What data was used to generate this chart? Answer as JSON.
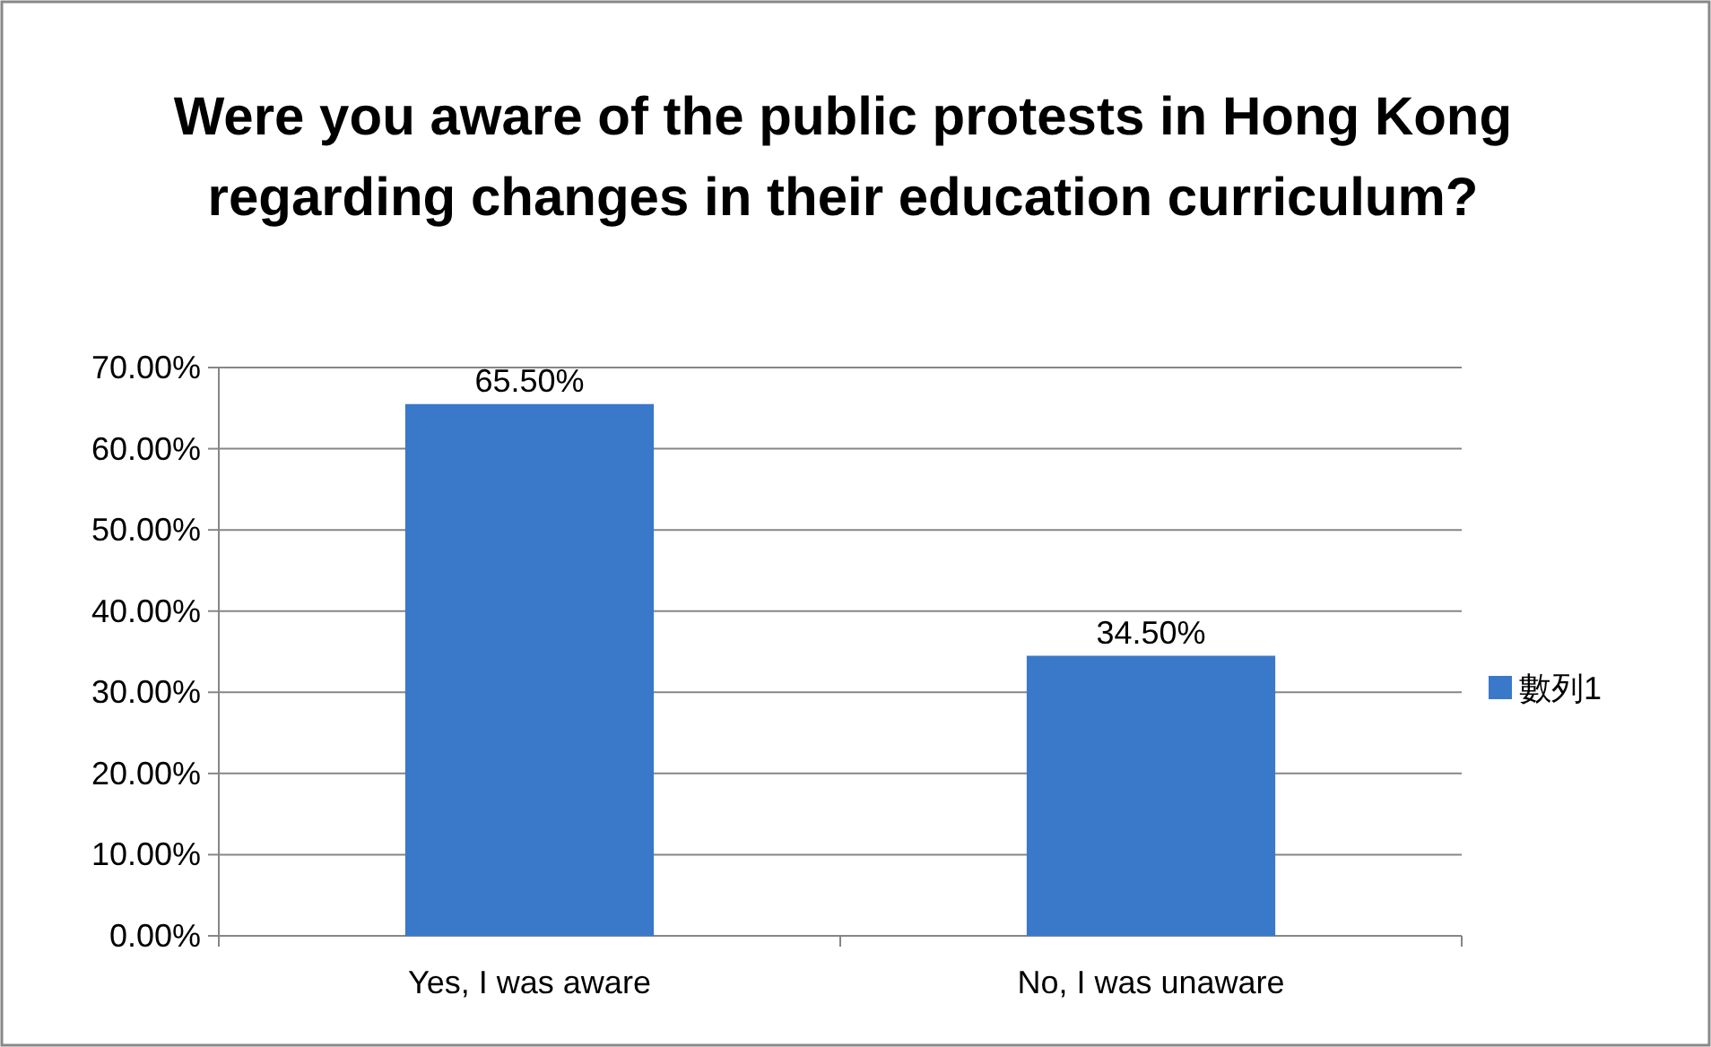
{
  "chart_data": {
    "type": "bar",
    "title": "Were you aware of the public protests in Hong Kong regarding changes in their education curriculum?",
    "categories": [
      "Yes, I was aware",
      "No, I was unaware"
    ],
    "series": [
      {
        "name": "數列1",
        "color": "#3a78c9",
        "values": [
          65.5,
          34.5
        ],
        "value_labels": [
          "65.50%",
          "34.50%"
        ]
      }
    ],
    "ylim": [
      0,
      70
    ],
    "yticks": [
      {
        "value": 0,
        "label": "0.00%"
      },
      {
        "value": 10,
        "label": "10.00%"
      },
      {
        "value": 20,
        "label": "20.00%"
      },
      {
        "value": 30,
        "label": "30.00%"
      },
      {
        "value": 40,
        "label": "40.00%"
      },
      {
        "value": 50,
        "label": "50.00%"
      },
      {
        "value": 60,
        "label": "60.00%"
      },
      {
        "value": 70,
        "label": "70.00%"
      }
    ],
    "grid": "y",
    "legend": "right"
  }
}
